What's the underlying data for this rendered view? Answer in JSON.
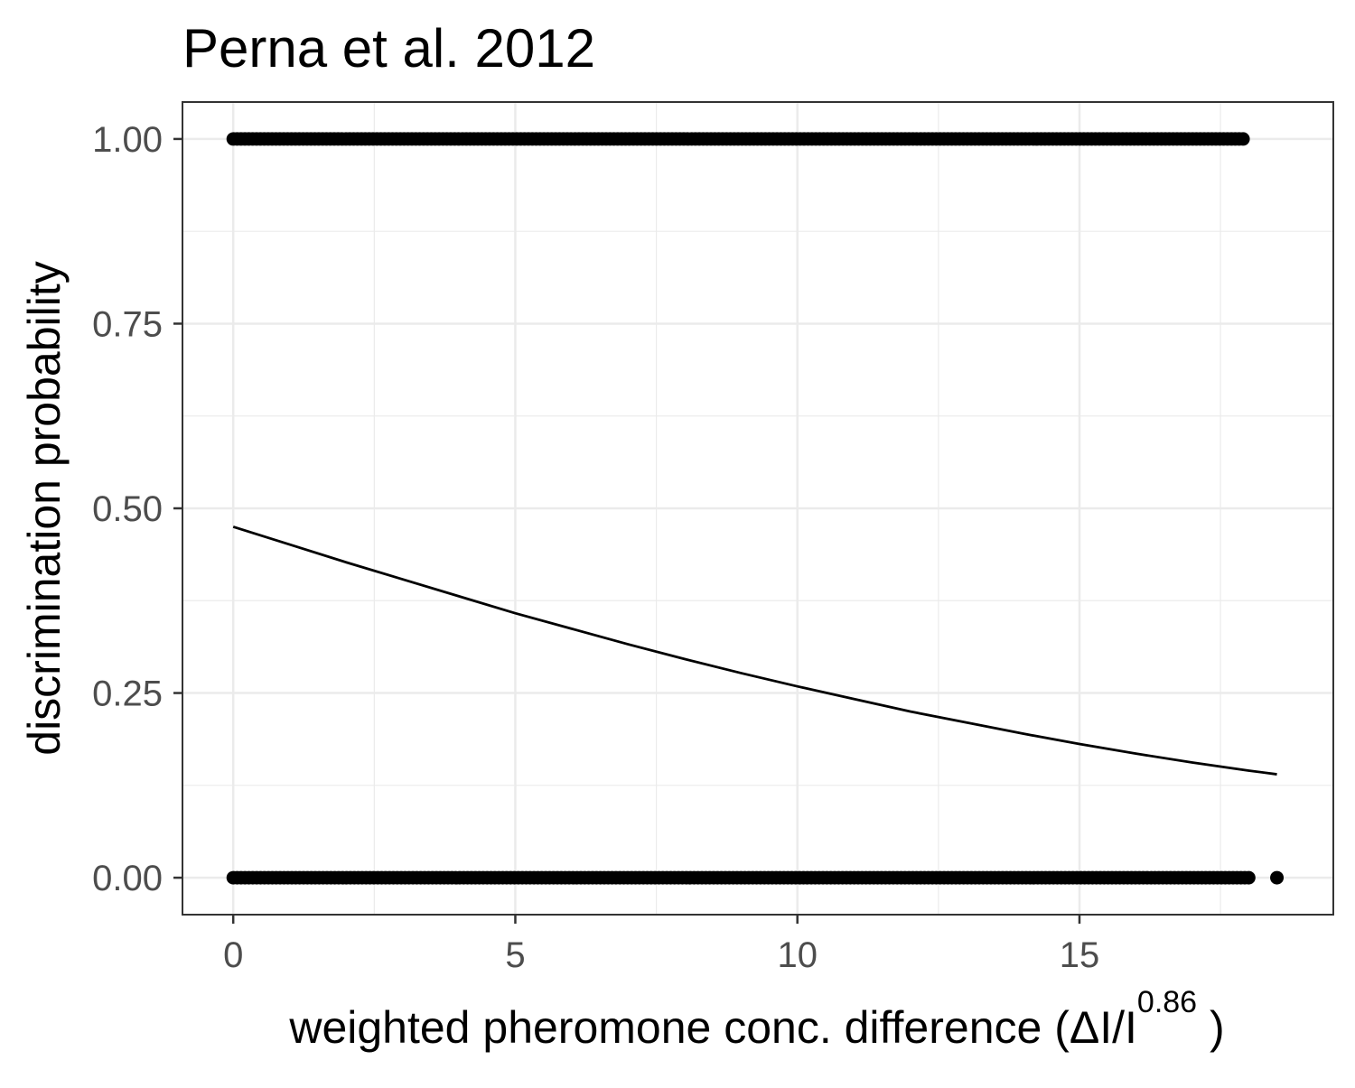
{
  "chart_data": {
    "type": "scatter",
    "title": "Perna et al. 2012",
    "xlabel": {
      "main": "weighted  pheromone conc.  difference (ΔI/I",
      "superscript": "0.86",
      "close": " )"
    },
    "ylabel": "discrimination probability",
    "xlim": [
      -0.9,
      19.5
    ],
    "ylim": [
      -0.05,
      1.05
    ],
    "x_ticks": [
      0,
      5,
      10,
      15
    ],
    "x_tick_labels": [
      "0",
      "5",
      "10",
      "15"
    ],
    "y_ticks": [
      0,
      0.25,
      0.5,
      0.75,
      1.0
    ],
    "y_tick_labels": [
      "0.00",
      "0.25",
      "0.50",
      "0.75",
      "1.00"
    ],
    "grid": true,
    "legend": "none",
    "series": [
      {
        "kind": "points",
        "y": 1,
        "x_range": [
          0,
          17.9
        ],
        "extra_x": []
      },
      {
        "kind": "points",
        "y": 0,
        "x_range": [
          0,
          18.0
        ],
        "extra_x": [
          18.5
        ]
      },
      {
        "kind": "fitted_curve",
        "x": [
          0,
          1,
          2,
          3,
          4,
          5,
          6,
          7,
          8,
          9,
          10,
          11,
          12,
          13,
          14,
          15,
          16,
          17,
          18,
          18.5
        ],
        "y": [
          0.475,
          0.451,
          0.427,
          0.404,
          0.381,
          0.358,
          0.337,
          0.316,
          0.296,
          0.277,
          0.259,
          0.242,
          0.225,
          0.21,
          0.195,
          0.181,
          0.168,
          0.156,
          0.145,
          0.14
        ]
      }
    ],
    "colors": {
      "points": "#000000",
      "curve": "#000000",
      "grid": "#ebebeb",
      "panel_border": "#333333",
      "tick_label": "#4d4d4d",
      "axis_title": "#000000"
    }
  }
}
